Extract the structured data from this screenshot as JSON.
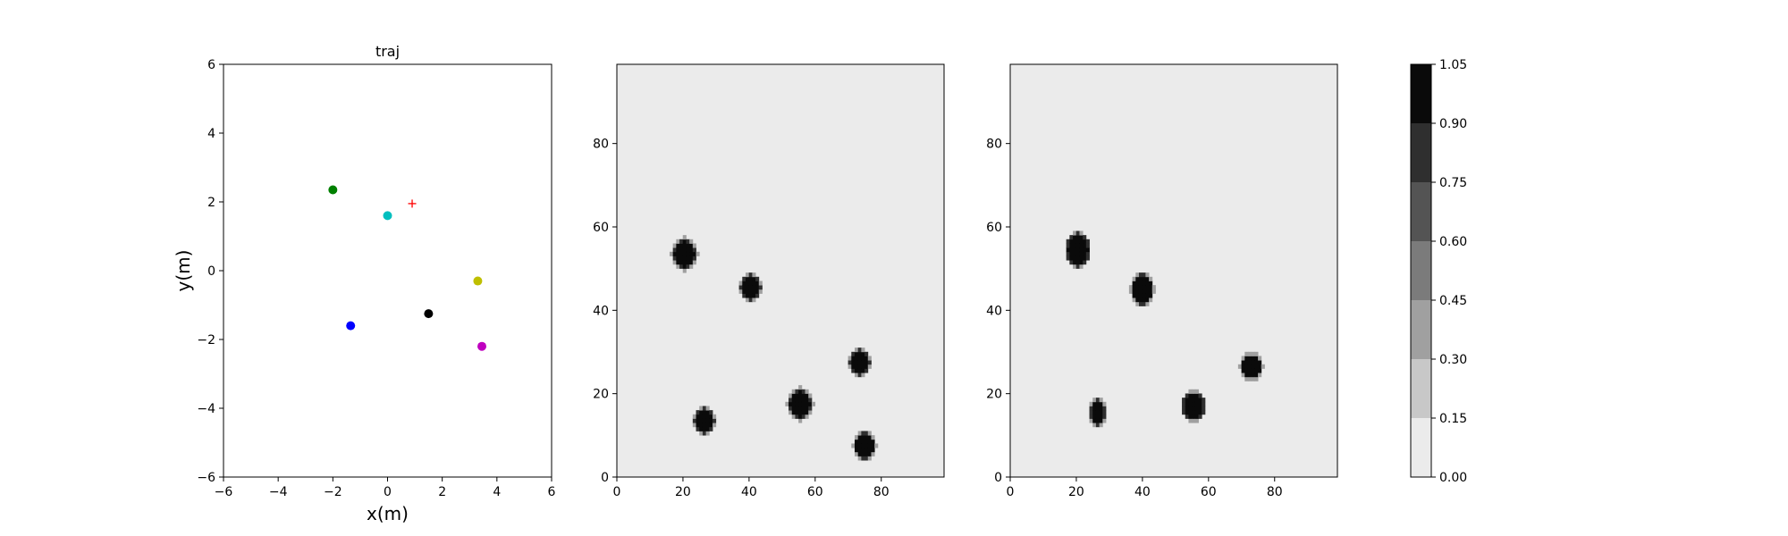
{
  "chart_data": [
    {
      "type": "scatter",
      "title": "traj",
      "xlabel": "x(m)",
      "ylabel": "y(m)",
      "xlim": [
        -6,
        6
      ],
      "ylim": [
        -6,
        6
      ],
      "xticks": [
        -6,
        -4,
        -2,
        0,
        2,
        4,
        6
      ],
      "yticks": [
        -6,
        -4,
        -2,
        0,
        2,
        4,
        6
      ],
      "grid": false,
      "series": [
        {
          "points": [
            {
              "x": -2.0,
              "y": 2.35
            }
          ],
          "marker": "circle",
          "color": "#008000"
        },
        {
          "points": [
            {
              "x": 0.0,
              "y": 1.6
            }
          ],
          "marker": "circle",
          "color": "#00bfbf"
        },
        {
          "points": [
            {
              "x": 0.9,
              "y": 1.95
            }
          ],
          "marker": "plus",
          "color": "#ff0000"
        },
        {
          "points": [
            {
              "x": 3.3,
              "y": -0.3
            }
          ],
          "marker": "circle",
          "color": "#bfbf00"
        },
        {
          "points": [
            {
              "x": 1.5,
              "y": -1.25
            }
          ],
          "marker": "circle",
          "color": "#000000"
        },
        {
          "points": [
            {
              "x": -1.35,
              "y": -1.6
            }
          ],
          "marker": "circle",
          "color": "#0000ff"
        },
        {
          "points": [
            {
              "x": 3.45,
              "y": -2.2
            }
          ],
          "marker": "circle",
          "color": "#bf00bf"
        }
      ]
    },
    {
      "type": "heatmap",
      "title": "",
      "xlabel": "",
      "ylabel": "",
      "xlim": [
        0,
        99
      ],
      "ylim": [
        0,
        99
      ],
      "xticks": [
        0,
        20,
        40,
        60,
        80
      ],
      "yticks": [
        0,
        20,
        40,
        60,
        80
      ],
      "background_level": 0.05,
      "blobs": [
        {
          "x": 20.5,
          "y": 53.5,
          "radius": 3.6,
          "value": 1.0
        },
        {
          "x": 40.5,
          "y": 45.5,
          "radius": 3.0,
          "value": 1.0
        },
        {
          "x": 73.5,
          "y": 27.5,
          "radius": 3.0,
          "value": 1.0
        },
        {
          "x": 55.5,
          "y": 17.5,
          "radius": 3.6,
          "value": 1.0
        },
        {
          "x": 26.5,
          "y": 13.5,
          "radius": 3.0,
          "value": 1.0
        },
        {
          "x": 75.0,
          "y": 7.5,
          "radius": 3.2,
          "value": 1.0
        }
      ]
    },
    {
      "type": "heatmap",
      "title": "",
      "xlabel": "",
      "ylabel": "",
      "xlim": [
        0,
        99
      ],
      "ylim": [
        0,
        99
      ],
      "xticks": [
        0,
        20,
        40,
        60,
        80
      ],
      "yticks": [
        0,
        20,
        40,
        60,
        80
      ],
      "background_level": 0.05,
      "blobs": [
        {
          "x": 20.5,
          "y": 54.5,
          "rx": 3.5,
          "ry": 4.0,
          "value": 1.0
        },
        {
          "x": 40.0,
          "y": 45.0,
          "rx": 3.3,
          "ry": 3.6,
          "value": 1.0
        },
        {
          "x": 73.0,
          "y": 26.5,
          "rx": 3.2,
          "ry": 3.0,
          "value": 1.0
        },
        {
          "x": 55.5,
          "y": 17.0,
          "rx": 3.4,
          "ry": 3.4,
          "value": 1.0
        },
        {
          "x": 26.5,
          "y": 15.5,
          "rx": 2.3,
          "ry": 3.2,
          "value": 0.95
        }
      ]
    }
  ],
  "colorbar": {
    "levels": [
      0.0,
      0.15,
      0.3,
      0.45,
      0.6,
      0.75,
      0.9,
      1.05
    ],
    "tick_labels": [
      "0.00",
      "0.15",
      "0.30",
      "0.45",
      "0.60",
      "0.75",
      "0.90",
      "1.05"
    ],
    "colors": [
      "#ebebeb",
      "#c8c8c8",
      "#a0a0a0",
      "#7b7b7b",
      "#545454",
      "#2f2f2f",
      "#0a0a0a"
    ]
  }
}
